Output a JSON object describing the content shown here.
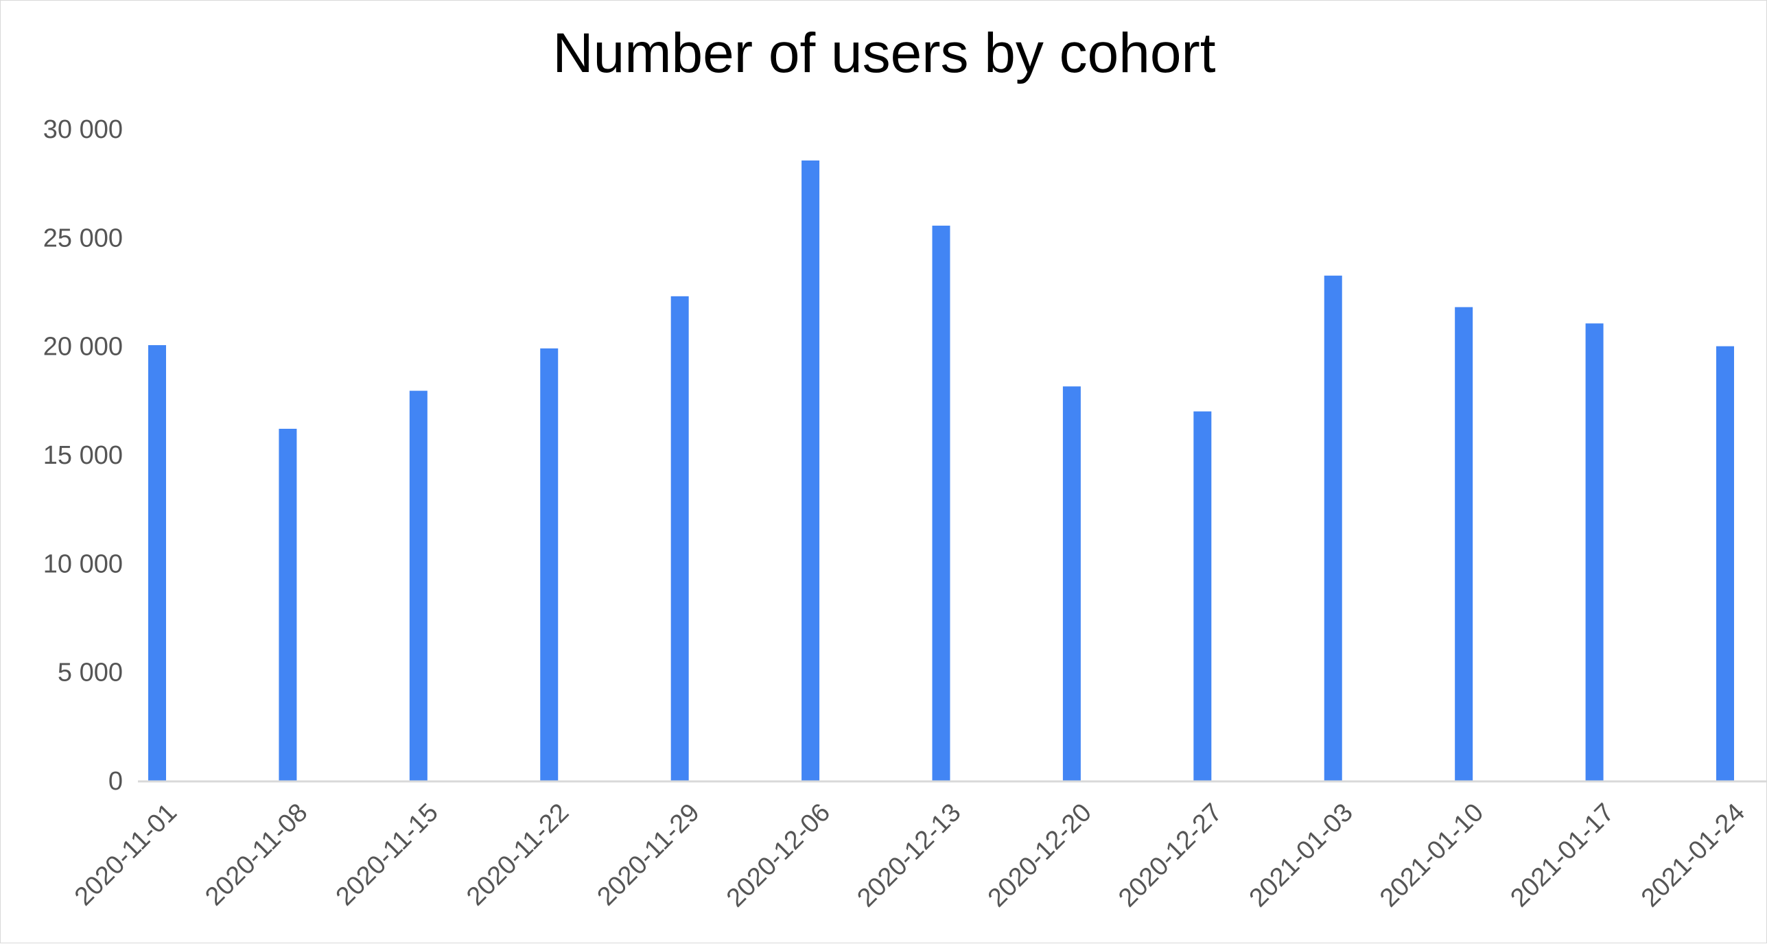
{
  "chart_data": {
    "type": "bar",
    "title": "Number of users by cohort",
    "xlabel": "",
    "ylabel": "",
    "categories": [
      "2020-11-01",
      "2020-11-08",
      "2020-11-15",
      "2020-11-22",
      "2020-11-29",
      "2020-12-06",
      "2020-12-13",
      "2020-12-20",
      "2020-12-27",
      "2021-01-03",
      "2021-01-10",
      "2021-01-17",
      "2021-01-24"
    ],
    "values": [
      20050,
      16200,
      17950,
      19900,
      22300,
      28550,
      25550,
      18150,
      17000,
      23250,
      21800,
      21050,
      20000
    ],
    "ylim": [
      0,
      30000
    ],
    "yticks": [
      0,
      5000,
      10000,
      15000,
      20000,
      25000,
      30000
    ],
    "ytick_labels": [
      "0",
      "5 000",
      "10 000",
      "15 000",
      "20 000",
      "25 000",
      "30 000"
    ],
    "grid": false,
    "legend": "none",
    "bar_color": "#4285f4",
    "axis_color": "#d9d9d9",
    "tick_label_color": "#555555"
  }
}
